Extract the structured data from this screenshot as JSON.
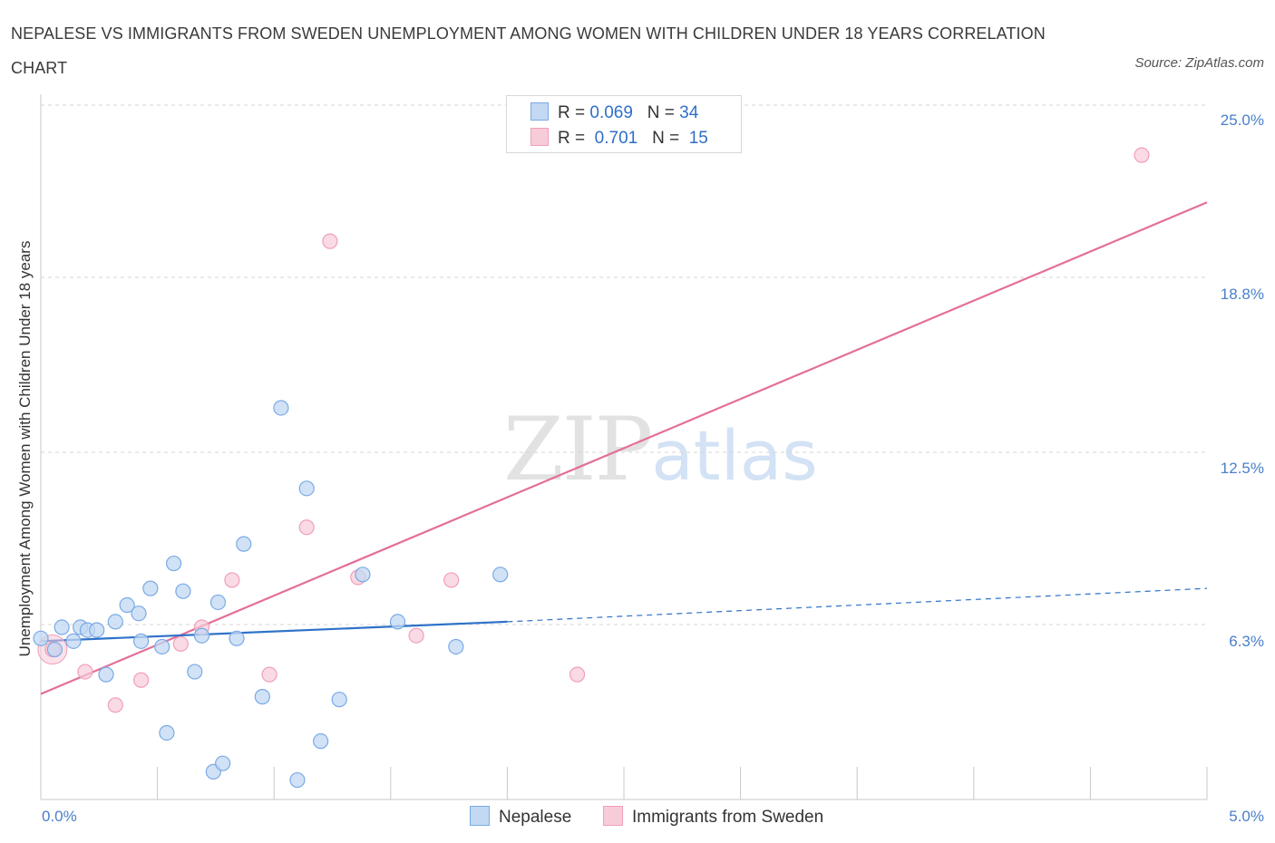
{
  "chart_data": {
    "type": "scatter",
    "title": "NEPALESE VS IMMIGRANTS FROM SWEDEN UNEMPLOYMENT AMONG WOMEN WITH CHILDREN UNDER 18 YEARS CORRELATION CHART",
    "source": "Source: ZipAtlas.com",
    "xlabel": "",
    "ylabel": "Unemployment Among Women with Children Under 18 years",
    "xlim": [
      0,
      5.0
    ],
    "ylim": [
      0,
      25.0
    ],
    "x_tick_labels": [
      "0.0%",
      "5.0%"
    ],
    "y_ticks": [
      6.3,
      12.5,
      18.8,
      25.0
    ],
    "y_tick_labels": [
      "6.3%",
      "12.5%",
      "18.8%",
      "25.0%"
    ],
    "watermark": {
      "zip": "ZIP",
      "atlas": "atlas"
    },
    "legend": {
      "rows": [
        {
          "r_label": "R =",
          "r_value": "0.069",
          "n_label": "N =",
          "n_value": "34"
        },
        {
          "r_label": "R =",
          "r_value": "0.701",
          "n_label": "N =",
          "n_value": "15"
        }
      ]
    },
    "series": [
      {
        "name": "Nepalese",
        "color": "#7aaae6",
        "fill": "#c2d8f3",
        "line_color": "#2f72c8",
        "trend": {
          "x0": 0.0,
          "y0": 5.7,
          "x1": 2.0,
          "y1": 6.4,
          "dash_x1": 5.0,
          "dash_y1": 7.6
        },
        "points": [
          [
            0.0,
            5.8
          ],
          [
            0.06,
            5.4
          ],
          [
            0.09,
            6.2
          ],
          [
            0.14,
            5.7
          ],
          [
            0.17,
            6.2
          ],
          [
            0.2,
            6.1
          ],
          [
            0.24,
            6.1
          ],
          [
            0.28,
            4.5
          ],
          [
            0.32,
            6.4
          ],
          [
            0.37,
            7.0
          ],
          [
            0.42,
            6.7
          ],
          [
            0.43,
            5.7
          ],
          [
            0.47,
            7.6
          ],
          [
            0.52,
            5.5
          ],
          [
            0.54,
            2.4
          ],
          [
            0.57,
            8.5
          ],
          [
            0.61,
            7.5
          ],
          [
            0.66,
            4.6
          ],
          [
            0.69,
            5.9
          ],
          [
            0.74,
            1.0
          ],
          [
            0.76,
            7.1
          ],
          [
            0.78,
            1.3
          ],
          [
            0.84,
            5.8
          ],
          [
            0.87,
            9.2
          ],
          [
            0.95,
            3.7
          ],
          [
            1.03,
            14.1
          ],
          [
            1.1,
            0.7
          ],
          [
            1.14,
            11.2
          ],
          [
            1.2,
            2.1
          ],
          [
            1.28,
            3.6
          ],
          [
            1.38,
            8.1
          ],
          [
            1.53,
            6.4
          ],
          [
            1.78,
            5.5
          ],
          [
            1.97,
            8.1
          ]
        ]
      },
      {
        "name": "Immigrants from Sweden",
        "color": "#f0a0b8",
        "fill": "#f8cbd8",
        "line_color": "#e46f98",
        "trend": {
          "x0": 0.0,
          "y0": 3.8,
          "x1": 5.0,
          "y1": 21.5
        },
        "points": [
          [
            0.05,
            5.4
          ],
          [
            0.19,
            4.6
          ],
          [
            0.32,
            3.4
          ],
          [
            0.43,
            4.3
          ],
          [
            0.6,
            5.6
          ],
          [
            0.69,
            6.2
          ],
          [
            0.82,
            7.9
          ],
          [
            0.98,
            4.5
          ],
          [
            1.14,
            9.8
          ],
          [
            1.24,
            20.1
          ],
          [
            1.36,
            8.0
          ],
          [
            1.61,
            5.9
          ],
          [
            1.76,
            7.9
          ],
          [
            2.3,
            4.5
          ],
          [
            4.72,
            23.2
          ]
        ]
      }
    ]
  }
}
